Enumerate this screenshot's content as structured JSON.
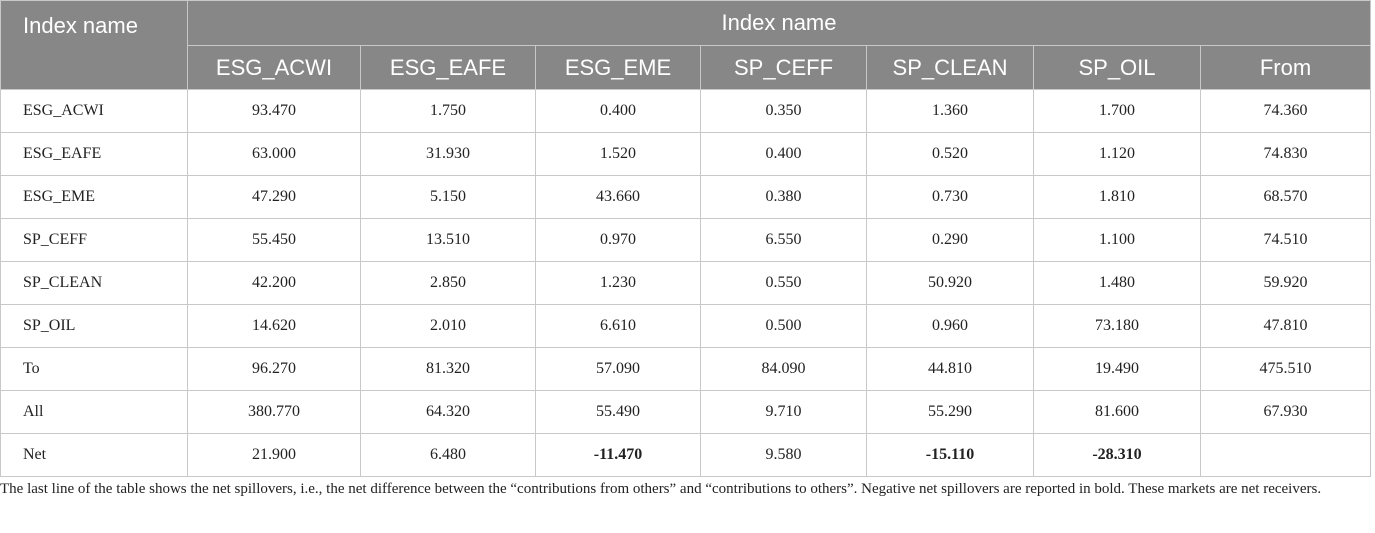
{
  "table": {
    "corner_header": "Index name",
    "group_header": "Index name",
    "columns": [
      "ESG_ACWI",
      "ESG_EAFE",
      "ESG_EME",
      "SP_CEFF",
      "SP_CLEAN",
      "SP_OIL",
      "From"
    ],
    "rows": [
      {
        "label": "ESG_ACWI",
        "values": [
          "93.470",
          "1.750",
          "0.400",
          "0.350",
          "1.360",
          "1.700",
          "74.360"
        ]
      },
      {
        "label": "ESG_EAFE",
        "values": [
          "63.000",
          "31.930",
          "1.520",
          "0.400",
          "0.520",
          "1.120",
          "74.830"
        ]
      },
      {
        "label": "ESG_EME",
        "values": [
          "47.290",
          "5.150",
          "43.660",
          "0.380",
          "0.730",
          "1.810",
          "68.570"
        ]
      },
      {
        "label": "SP_CEFF",
        "values": [
          "55.450",
          "13.510",
          "0.970",
          "6.550",
          "0.290",
          "1.100",
          "74.510"
        ]
      },
      {
        "label": "SP_CLEAN",
        "values": [
          "42.200",
          "2.850",
          "1.230",
          "0.550",
          "50.920",
          "1.480",
          "59.920"
        ]
      },
      {
        "label": "SP_OIL",
        "values": [
          "14.620",
          "2.010",
          "6.610",
          "0.500",
          "0.960",
          "73.180",
          "47.810"
        ]
      },
      {
        "label": "To",
        "values": [
          "96.270",
          "81.320",
          "57.090",
          "84.090",
          "44.810",
          "19.490",
          "475.510"
        ]
      },
      {
        "label": "All",
        "values": [
          "380.770",
          "64.320",
          "55.490",
          "9.710",
          "55.290",
          "81.600",
          "67.930"
        ]
      },
      {
        "label": "Net",
        "values": [
          "21.900",
          "6.480",
          "-11.470",
          "9.580",
          "-15.110",
          "-28.310"
        ]
      }
    ]
  },
  "footnote": "The last line of the table shows the net spillovers, i.e., the net difference between the “contributions from others” and “contributions to others”. Negative net spillovers are reported in bold. These markets are net receivers."
}
